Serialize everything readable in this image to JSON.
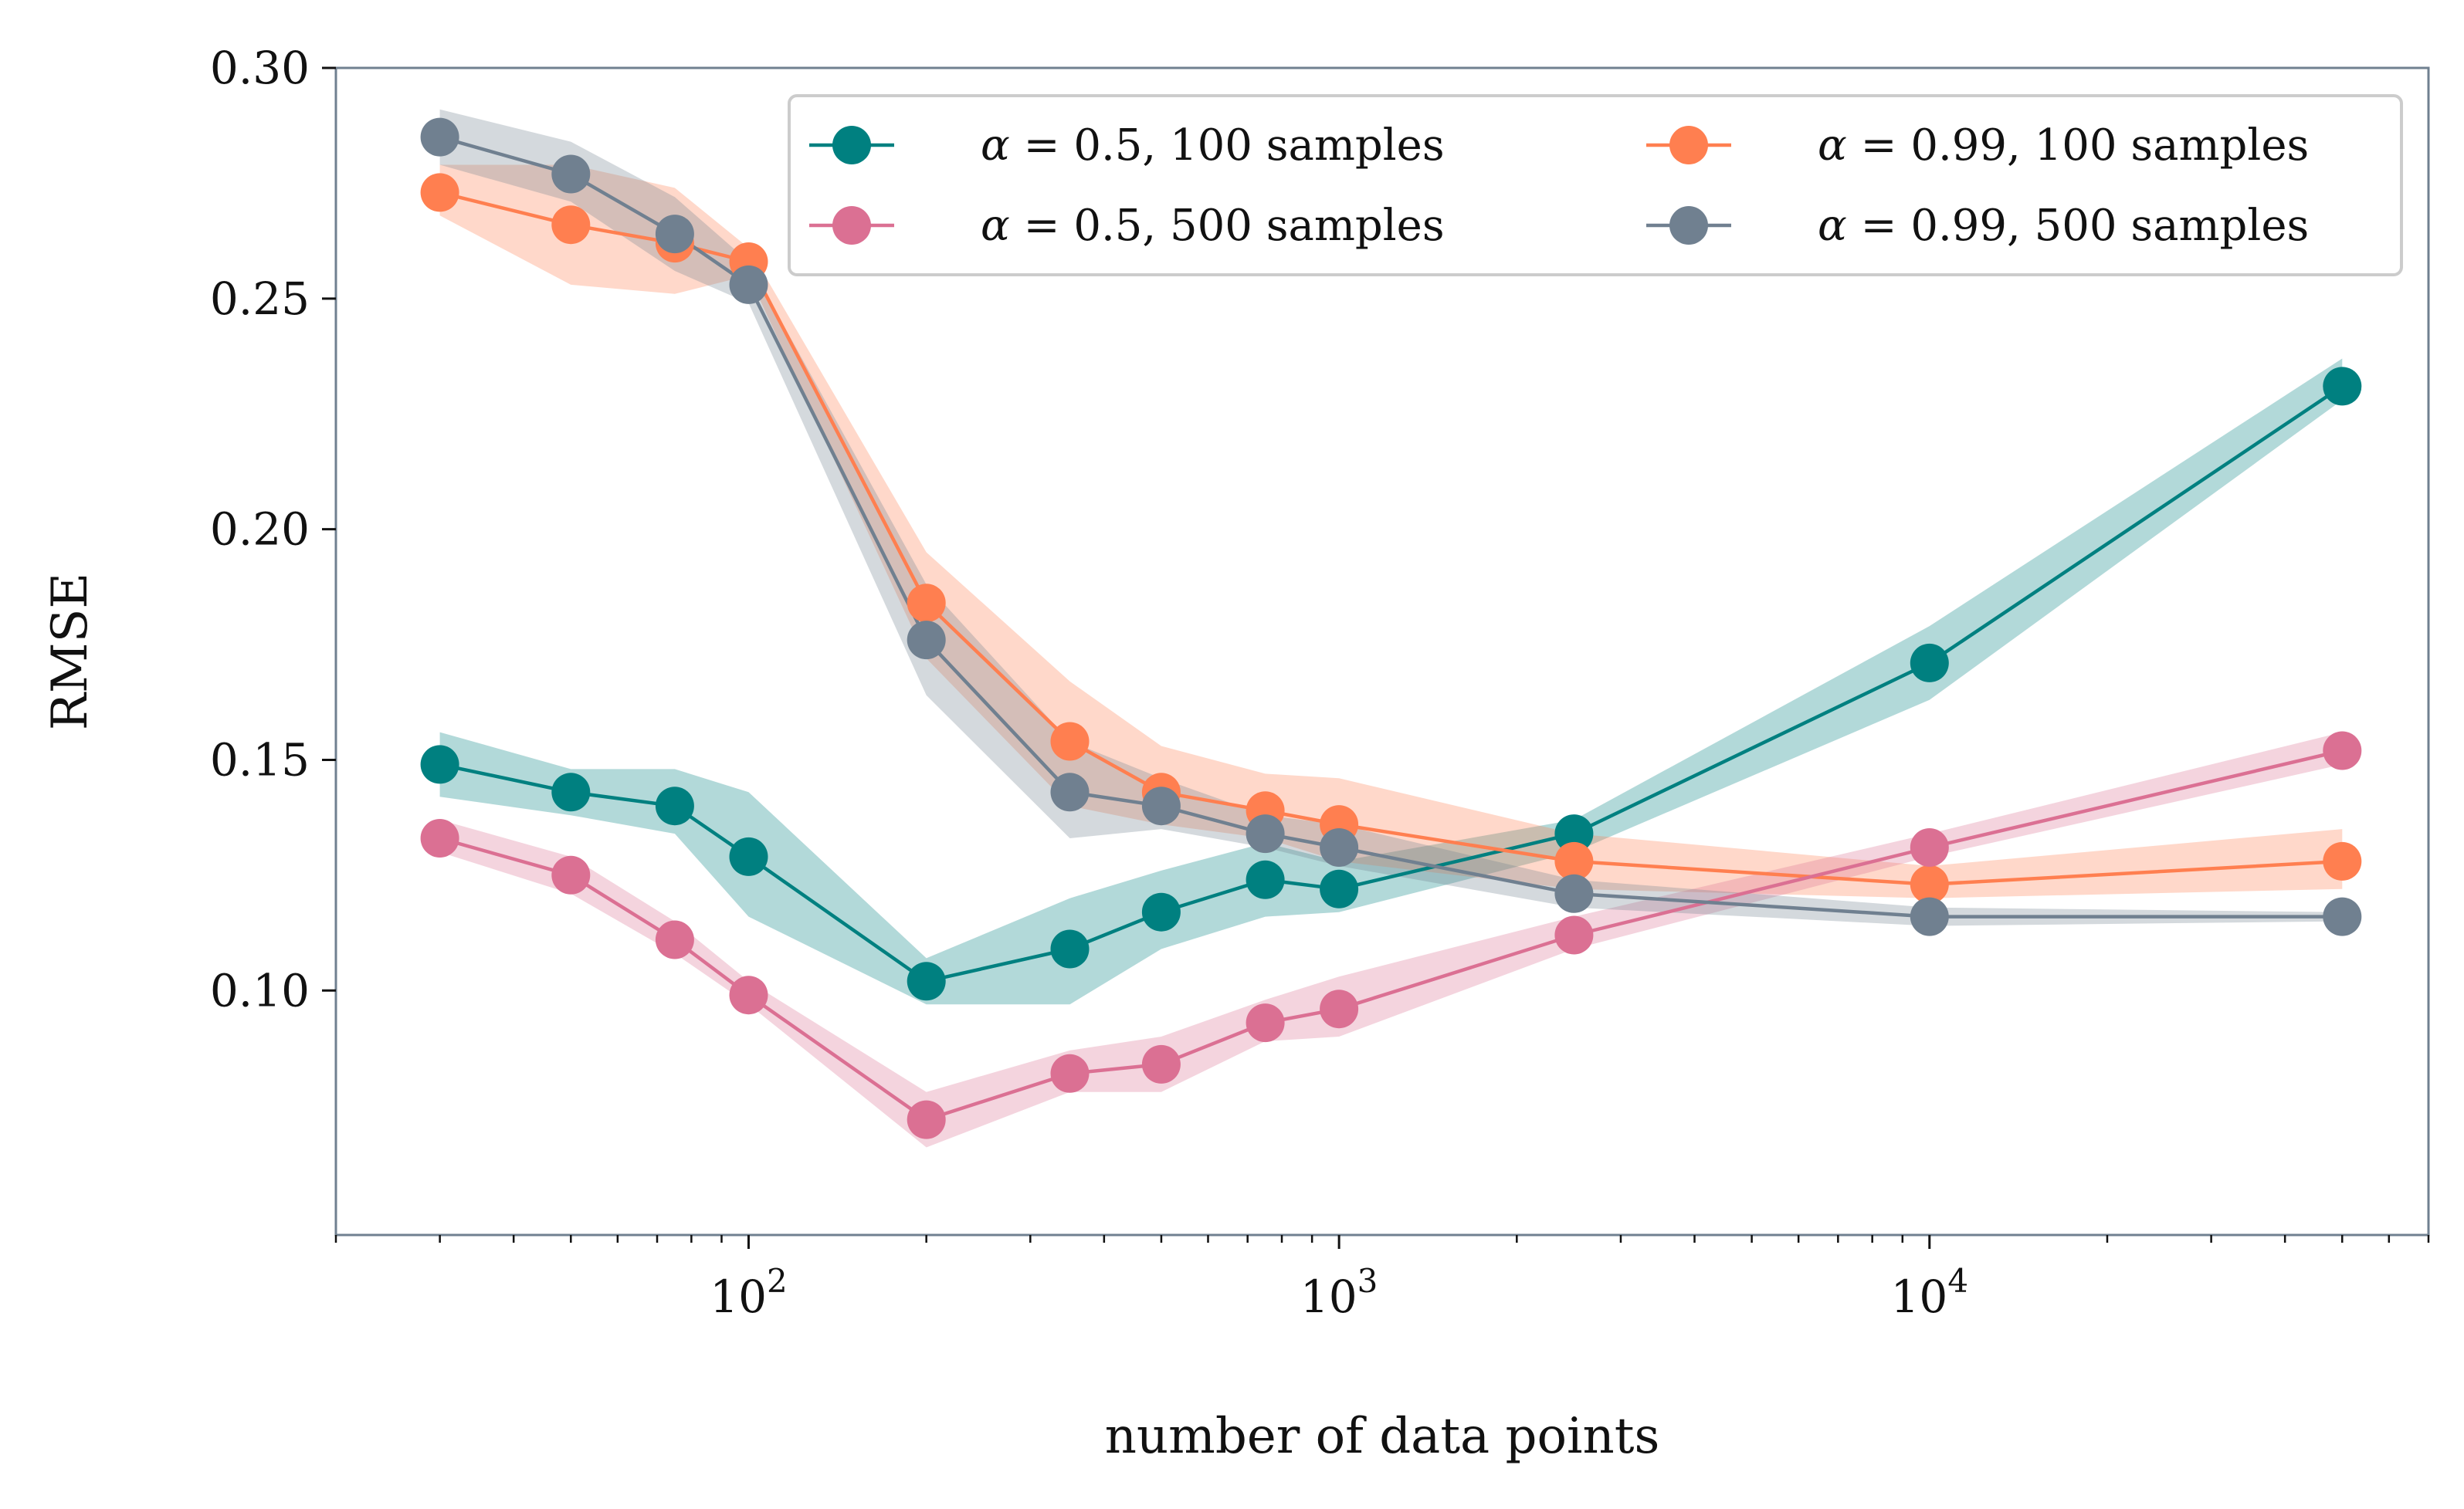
{
  "chart_data": {
    "type": "line",
    "title": "",
    "xlabel": "number of data points",
    "ylabel": "RMSE",
    "xscale": "log",
    "xlim": [
      20,
      70000
    ],
    "ylim": [
      0.047,
      0.3
    ],
    "yticks": [
      0.1,
      0.15,
      0.2,
      0.25,
      0.3
    ],
    "ytick_labels": [
      "0.10",
      "0.15",
      "0.20",
      "0.25",
      "0.30"
    ],
    "xticks": [
      {
        "value": 100,
        "base": "10",
        "exp": "2"
      },
      {
        "value": 1000,
        "base": "10",
        "exp": "3"
      },
      {
        "value": 10000,
        "base": "10",
        "exp": "4"
      }
    ],
    "grid": false,
    "legend_position": "upper-right",
    "legend_columns": 2,
    "x": [
      30,
      50,
      75,
      100,
      200,
      350,
      500,
      750,
      1000,
      2500,
      10000,
      50000
    ],
    "series": [
      {
        "name": "α = 0.5, 100 samples",
        "symbol": "α",
        "text": " = 0.5, 100 samples",
        "color": "#008080",
        "values": [
          0.149,
          0.143,
          0.14,
          0.129,
          0.102,
          0.109,
          0.117,
          0.124,
          0.122,
          0.134,
          0.171,
          0.231
        ],
        "lower": [
          0.142,
          0.138,
          0.134,
          0.116,
          0.097,
          0.097,
          0.109,
          0.116,
          0.117,
          0.13,
          0.163,
          0.228
        ],
        "upper": [
          0.156,
          0.148,
          0.148,
          0.143,
          0.107,
          0.12,
          0.126,
          0.132,
          0.128,
          0.137,
          0.179,
          0.237
        ]
      },
      {
        "name": "α = 0.99, 100 samples",
        "symbol": "α",
        "text": " = 0.99, 100 samples",
        "color": "#ff7f50",
        "values": [
          0.273,
          0.266,
          0.262,
          0.258,
          0.184,
          0.154,
          0.143,
          0.139,
          0.136,
          0.128,
          0.123,
          0.128
        ],
        "lower": [
          0.268,
          0.253,
          0.251,
          0.255,
          0.172,
          0.14,
          0.136,
          0.133,
          0.128,
          0.122,
          0.12,
          0.122
        ],
        "upper": [
          0.279,
          0.279,
          0.274,
          0.261,
          0.195,
          0.167,
          0.153,
          0.147,
          0.146,
          0.134,
          0.127,
          0.135
        ]
      },
      {
        "name": "α = 0.5, 500 samples",
        "symbol": "α",
        "text": " = 0.5, 500 samples",
        "color": "#db7093",
        "values": [
          0.133,
          0.125,
          0.111,
          0.099,
          0.072,
          0.082,
          0.084,
          0.093,
          0.096,
          0.112,
          0.131,
          0.152
        ],
        "lower": [
          0.13,
          0.121,
          0.108,
          0.097,
          0.066,
          0.078,
          0.078,
          0.089,
          0.09,
          0.109,
          0.129,
          0.149
        ],
        "upper": [
          0.137,
          0.129,
          0.115,
          0.102,
          0.078,
          0.087,
          0.09,
          0.098,
          0.103,
          0.116,
          0.134,
          0.156
        ]
      },
      {
        "name": "α = 0.99, 500 samples",
        "symbol": "α",
        "text": " = 0.99, 500 samples",
        "color": "#708090",
        "values": [
          0.285,
          0.277,
          0.264,
          0.253,
          0.176,
          0.143,
          0.14,
          0.134,
          0.131,
          0.121,
          0.116,
          0.116
        ],
        "lower": [
          0.279,
          0.271,
          0.256,
          0.249,
          0.164,
          0.133,
          0.135,
          0.131,
          0.127,
          0.118,
          0.114,
          0.115
        ],
        "upper": [
          0.291,
          0.284,
          0.272,
          0.258,
          0.188,
          0.154,
          0.146,
          0.138,
          0.136,
          0.124,
          0.118,
          0.117
        ]
      }
    ],
    "legend_order": [
      0,
      2,
      1,
      3
    ]
  }
}
